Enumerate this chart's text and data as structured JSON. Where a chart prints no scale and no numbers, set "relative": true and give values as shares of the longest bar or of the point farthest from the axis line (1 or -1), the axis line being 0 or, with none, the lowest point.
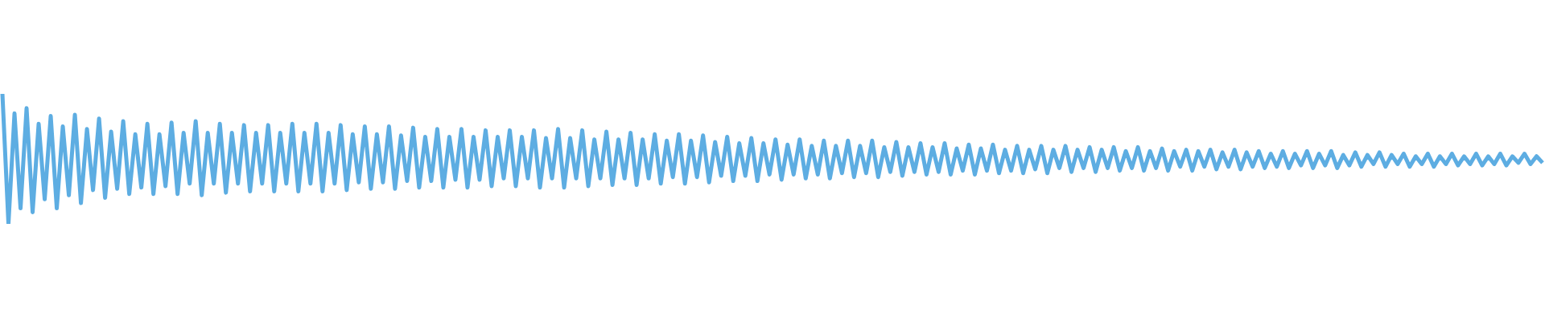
{
  "chart_data": {
    "type": "line",
    "relative": true,
    "color": "#5dade2",
    "categories": [
      null,
      null,
      null,
      null,
      null,
      null,
      null,
      null,
      null,
      null,
      null,
      null,
      null,
      null,
      null,
      null,
      null,
      null,
      null,
      null,
      null,
      null,
      null,
      null,
      null,
      null,
      null,
      null,
      null,
      null,
      null,
      null,
      null,
      null,
      null,
      null,
      null,
      null,
      null,
      null,
      null,
      null,
      null,
      null,
      null,
      null,
      null,
      null,
      null,
      null,
      null,
      null,
      null,
      null,
      null,
      null,
      null,
      null,
      null,
      null,
      null,
      null,
      null,
      null,
      null,
      null,
      null,
      null,
      null,
      null,
      null,
      null,
      null,
      null,
      null,
      null,
      null,
      null,
      null,
      null,
      null,
      null,
      null,
      null,
      null,
      null,
      null,
      null,
      null,
      null,
      null,
      null,
      null,
      null,
      null,
      null,
      null,
      null,
      null,
      null,
      null,
      null,
      null,
      null,
      null,
      null,
      null,
      null,
      null,
      null,
      null,
      null,
      null,
      null,
      null,
      null,
      null,
      null,
      null,
      null,
      null,
      null,
      null,
      null,
      null,
      null,
      null,
      null,
      null,
      null,
      null,
      null,
      null,
      null,
      null,
      null,
      null,
      null,
      null,
      null,
      null,
      null,
      null,
      null,
      null,
      null,
      null,
      null,
      null,
      null,
      null,
      null,
      null,
      null,
      null,
      null,
      null,
      null,
      null,
      null,
      null,
      null,
      null,
      null,
      null,
      null,
      null,
      null,
      null,
      null,
      null,
      null,
      null,
      null,
      null,
      null,
      null,
      null,
      null,
      null,
      null,
      null,
      null,
      null,
      null,
      null,
      null,
      null,
      null,
      null,
      null,
      null,
      null,
      null,
      null,
      null,
      null,
      null,
      null,
      null,
      null,
      null,
      null,
      null,
      null,
      null,
      null,
      null,
      null,
      null,
      null,
      null,
      null,
      null,
      null,
      null,
      null,
      null,
      null,
      null,
      null,
      null,
      null,
      null,
      null,
      null,
      null,
      null,
      null,
      null,
      null,
      null,
      null,
      null,
      null,
      null,
      null,
      null,
      null,
      null,
      null,
      null,
      null,
      null,
      null,
      null,
      null,
      null,
      null,
      null,
      null,
      null,
      null,
      null,
      null,
      null
    ],
    "values": [
      1,
      0,
      0.85,
      0.12,
      0.89,
      0.09,
      0.77,
      0.19,
      0.83,
      0.12,
      0.75,
      0.22,
      0.84,
      0.16,
      0.73,
      0.26,
      0.81,
      0.2,
      0.71,
      0.27,
      0.79,
      0.23,
      0.69,
      0.28,
      0.77,
      0.23,
      0.69,
      0.29,
      0.78,
      0.23,
      0.7,
      0.31,
      0.79,
      0.22,
      0.7,
      0.31,
      0.77,
      0.24,
      0.7,
      0.31,
      0.76,
      0.25,
      0.7,
      0.31,
      0.76,
      0.25,
      0.7,
      0.31,
      0.77,
      0.25,
      0.7,
      0.31,
      0.77,
      0.25,
      0.7,
      0.31,
      0.76,
      0.26,
      0.69,
      0.32,
      0.75,
      0.27,
      0.69,
      0.32,
      0.75,
      0.27,
      0.68,
      0.33,
      0.74,
      0.28,
      0.67,
      0.33,
      0.73,
      0.28,
      0.67,
      0.34,
      0.73,
      0.28,
      0.67,
      0.34,
      0.72,
      0.29,
      0.67,
      0.35,
      0.72,
      0.29,
      0.67,
      0.35,
      0.72,
      0.28,
      0.66,
      0.35,
      0.73,
      0.28,
      0.66,
      0.35,
      0.72,
      0.29,
      0.65,
      0.35,
      0.71,
      0.3,
      0.65,
      0.35,
      0.7,
      0.3,
      0.65,
      0.35,
      0.69,
      0.31,
      0.64,
      0.36,
      0.69,
      0.31,
      0.64,
      0.36,
      0.68,
      0.32,
      0.63,
      0.37,
      0.67,
      0.33,
      0.62,
      0.37,
      0.66,
      0.33,
      0.62,
      0.38,
      0.65,
      0.34,
      0.61,
      0.38,
      0.65,
      0.35,
      0.6,
      0.38,
      0.64,
      0.35,
      0.6,
      0.39,
      0.64,
      0.36,
      0.6,
      0.39,
      0.64,
      0.36,
      0.59,
      0.4,
      0.63,
      0.37,
      0.59,
      0.4,
      0.62,
      0.38,
      0.59,
      0.4,
      0.62,
      0.38,
      0.58,
      0.41,
      0.61,
      0.38,
      0.58,
      0.41,
      0.61,
      0.39,
      0.57,
      0.41,
      0.6,
      0.39,
      0.57,
      0.42,
      0.6,
      0.39,
      0.57,
      0.43,
      0.6,
      0.4,
      0.57,
      0.43,
      0.59,
      0.4,
      0.57,
      0.43,
      0.59,
      0.41,
      0.56,
      0.43,
      0.59,
      0.41,
      0.56,
      0.43,
      0.58,
      0.41,
      0.56,
      0.44,
      0.57,
      0.41,
      0.56,
      0.44,
      0.57,
      0.42,
      0.55,
      0.44,
      0.57,
      0.42,
      0.55,
      0.44,
      0.56,
      0.43,
      0.54,
      0.44,
      0.56,
      0.43,
      0.54,
      0.45,
      0.56,
      0.43,
      0.54,
      0.45,
      0.56,
      0.43,
      0.53,
      0.45,
      0.55,
      0.44,
      0.53,
      0.46,
      0.55,
      0.44,
      0.53,
      0.46,
      0.54,
      0.44,
      0.52,
      0.46,
      0.54,
      0.44,
      0.52,
      0.46,
      0.54,
      0.45,
      0.52,
      0.46,
      0.54,
      0.45,
      0.52,
      0.46,
      0.54,
      0.45,
      0.52,
      0.47,
      0.54,
      0.46,
      0.52,
      0.47
    ]
  }
}
